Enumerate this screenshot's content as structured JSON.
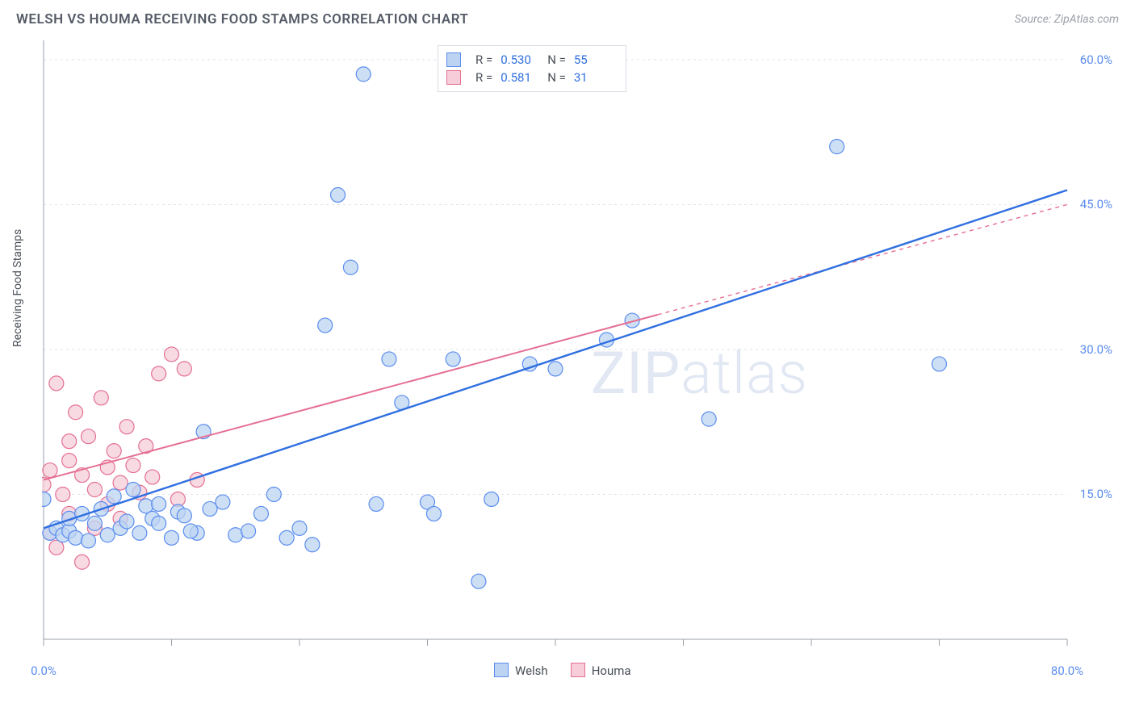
{
  "header": {
    "title": "WELSH VS HOUMA RECEIVING FOOD STAMPS CORRELATION CHART",
    "source": "Source: ZipAtlas.com"
  },
  "ylabel": "Receiving Food Stamps",
  "watermark": "ZIPatlas",
  "chart": {
    "type": "scatter",
    "background_color": "#ffffff",
    "grid_color": "#dfe3e9",
    "axis_color": "#9aa0a8",
    "xlim": [
      0,
      80
    ],
    "ylim": [
      0,
      62
    ],
    "y_ticks": [
      15.0,
      30.0,
      45.0,
      60.0
    ],
    "y_tick_labels": [
      "15.0%",
      "30.0%",
      "45.0%",
      "60.0%"
    ],
    "x_ticks": [
      0,
      10,
      20,
      30,
      40,
      50,
      60,
      70,
      80
    ],
    "x_tick_labels_shown": {
      "0": "0.0%",
      "80": "80.0%"
    },
    "marker_radius": 9,
    "marker_stroke_width": 1.2,
    "series": {
      "welsh": {
        "label": "Welsh",
        "fill": "#bcd4f2",
        "stroke": "#5b8def",
        "points": [
          [
            0,
            14.5
          ],
          [
            0.5,
            11
          ],
          [
            1,
            11.5
          ],
          [
            1.5,
            10.8
          ],
          [
            2,
            11.2
          ],
          [
            2,
            12.5
          ],
          [
            2.5,
            10.5
          ],
          [
            3,
            13
          ],
          [
            3.5,
            10.2
          ],
          [
            4,
            12
          ],
          [
            4.5,
            13.5
          ],
          [
            5,
            10.8
          ],
          [
            5.5,
            14.8
          ],
          [
            6,
            11.5
          ],
          [
            6.5,
            12.2
          ],
          [
            7,
            15.5
          ],
          [
            7.5,
            11
          ],
          [
            8,
            13.8
          ],
          [
            8.5,
            12.5
          ],
          [
            9,
            14
          ],
          [
            10,
            10.5
          ],
          [
            10.5,
            13.2
          ],
          [
            11,
            12.8
          ],
          [
            12,
            11
          ],
          [
            12.5,
            21.5
          ],
          [
            13,
            13.5
          ],
          [
            14,
            14.2
          ],
          [
            15,
            10.8
          ],
          [
            16,
            11.2
          ],
          [
            17,
            13
          ],
          [
            18,
            15
          ],
          [
            19,
            10.5
          ],
          [
            20,
            11.5
          ],
          [
            21,
            9.8
          ],
          [
            22,
            32.5
          ],
          [
            23,
            46
          ],
          [
            24,
            38.5
          ],
          [
            25,
            58.5
          ],
          [
            26,
            14
          ],
          [
            27,
            29
          ],
          [
            28,
            24.5
          ],
          [
            30,
            14.2
          ],
          [
            30.5,
            13
          ],
          [
            32,
            29
          ],
          [
            34,
            6
          ],
          [
            35,
            14.5
          ],
          [
            38,
            28.5
          ],
          [
            40,
            28
          ],
          [
            44,
            31
          ],
          [
            46,
            33
          ],
          [
            52,
            22.8
          ],
          [
            62,
            51
          ],
          [
            70,
            28.5
          ],
          [
            9,
            12
          ],
          [
            11.5,
            11.2
          ]
        ],
        "regression": {
          "x1": 0,
          "y1": 11.5,
          "x2": 80,
          "y2": 46.5,
          "solid_to_x": 80,
          "color": "#2f6fe0",
          "width": 2.4
        }
      },
      "houma": {
        "label": "Houma",
        "fill": "#f6cdd8",
        "stroke": "#e56f93",
        "points": [
          [
            0,
            16
          ],
          [
            0.5,
            17.5
          ],
          [
            1,
            26.5
          ],
          [
            1.5,
            15
          ],
          [
            2,
            18.5
          ],
          [
            2,
            20.5
          ],
          [
            2.5,
            23.5
          ],
          [
            3,
            17
          ],
          [
            3.5,
            21
          ],
          [
            4,
            15.5
          ],
          [
            4.5,
            25
          ],
          [
            5,
            17.8
          ],
          [
            5,
            14
          ],
          [
            5.5,
            19.5
          ],
          [
            6,
            16.2
          ],
          [
            6.5,
            22
          ],
          [
            7,
            18
          ],
          [
            7.5,
            15.2
          ],
          [
            8,
            20
          ],
          [
            8.5,
            16.8
          ],
          [
            9,
            27.5
          ],
          [
            10,
            29.5
          ],
          [
            10.5,
            14.5
          ],
          [
            11,
            28
          ],
          [
            12,
            16.5
          ],
          [
            1,
            9.5
          ],
          [
            3,
            8
          ],
          [
            0.5,
            11
          ],
          [
            2,
            13
          ],
          [
            4,
            11.5
          ],
          [
            6,
            12.5
          ]
        ],
        "regression": {
          "x1": 0,
          "y1": 16.5,
          "x2": 80,
          "y2": 45.0,
          "solid_to_x": 48,
          "color": "#e56f93",
          "width": 2.0
        }
      }
    },
    "stats": [
      {
        "series": "welsh",
        "R_label": "R =",
        "R": "0.530",
        "N_label": "N =",
        "N": "55"
      },
      {
        "series": "houma",
        "R_label": "R =",
        "R": "0.581",
        "N_label": "N =",
        "N": "31"
      }
    ],
    "bottom_legend": [
      {
        "series": "welsh",
        "label": "Welsh"
      },
      {
        "series": "houma",
        "label": "Houma"
      }
    ]
  }
}
